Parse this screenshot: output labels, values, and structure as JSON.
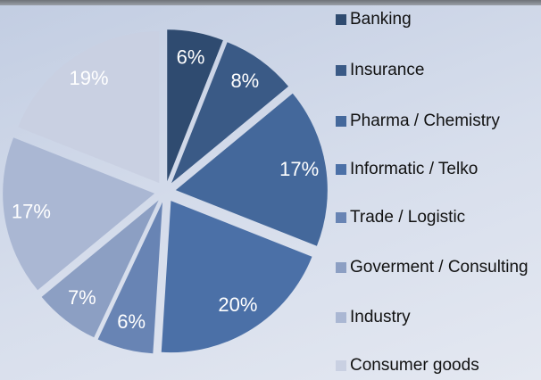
{
  "chart_data": {
    "type": "pie",
    "categories": [
      "Banking",
      "Insurance",
      "Pharma / Chemistry",
      "Informatic / Telko",
      "Trade / Logistic",
      "Goverment / Consulting",
      "Industry",
      "Consumer goods"
    ],
    "values": [
      6,
      8,
      17,
      20,
      6,
      7,
      17,
      19
    ],
    "value_labels": [
      "6%",
      "8%",
      "17%",
      "20%",
      "6%",
      "7%",
      "17%",
      "19%"
    ],
    "colors": [
      "#2f4b70",
      "#3a5a86",
      "#44689b",
      "#4b70a7",
      "#6884b4",
      "#8c9fc3",
      "#aab7d3",
      "#c9d0e2"
    ],
    "legend": "right"
  }
}
